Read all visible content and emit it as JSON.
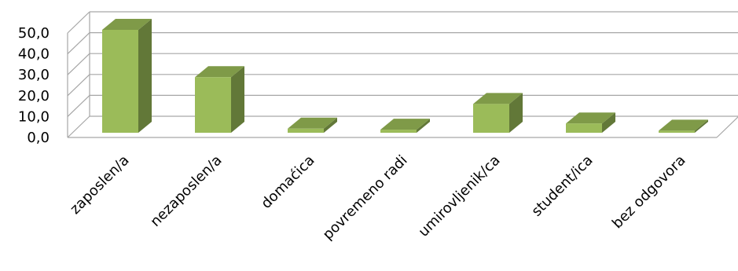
{
  "chart_data": {
    "type": "bar",
    "style": "3d-column",
    "categories": [
      "zaposlen/a",
      "nezaposlen/a",
      "domaćica",
      "povremeno radi",
      "umirovljenik/ca",
      "student/ica",
      "bez odgovora"
    ],
    "values": [
      50.0,
      27.0,
      2.0,
      1.5,
      14.0,
      4.5,
      1.0
    ],
    "ylim": [
      0,
      50
    ],
    "yticks": [
      "0,0",
      "10,0",
      "20,0",
      "30,0",
      "40,0",
      "50,0"
    ],
    "title": "",
    "xlabel": "",
    "ylabel": "",
    "grid": true,
    "legend": "none",
    "colors": {
      "bar_front": "#9bbb59",
      "bar_top": "#7f9a48",
      "bar_side": "#627838",
      "grid": "#a6a6a6"
    }
  }
}
